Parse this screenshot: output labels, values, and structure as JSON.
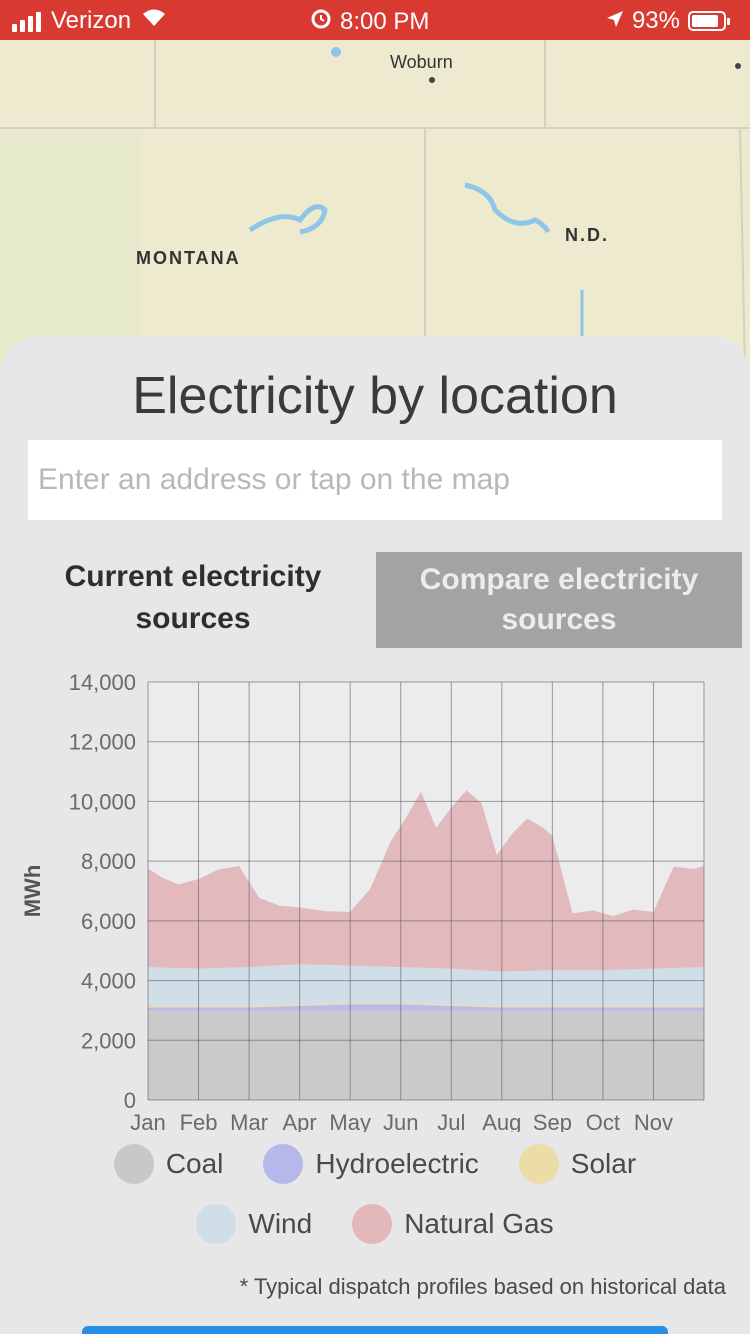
{
  "status_bar": {
    "carrier": "Verizon",
    "time": "8:00 PM",
    "battery": "93%",
    "signal_icon": "signal-bars-icon",
    "wifi_icon": "wifi-icon",
    "battery_icon": "battery-icon",
    "background": "#d83a32"
  },
  "map": {
    "labels": {
      "city": "Woburn",
      "state1": "MONTANA",
      "state2": "N.D."
    }
  },
  "panel": {
    "title": "Electricity by location",
    "address_placeholder": "Enter an address or tap on the map",
    "tab_current": "Current electricity sources",
    "tab_compare": "Compare electricity sources"
  },
  "chart_data": {
    "type": "area",
    "ylabel": "MWh",
    "ylim": [
      0,
      14000
    ],
    "y_ticks": [
      "0",
      "2,000",
      "4,000",
      "6,000",
      "8,000",
      "10,000",
      "12,000",
      "14,000"
    ],
    "x_ticks": [
      "Jan",
      "Feb",
      "Mar",
      "Apr",
      "May",
      "Jun",
      "Jul",
      "Aug",
      "Sep",
      "Oct",
      "Nov"
    ],
    "x_range": [
      0,
      11
    ],
    "stacked": true,
    "grid": true,
    "series": [
      {
        "name": "Coal",
        "color": "#c9c7c8",
        "x": [
          0,
          1,
          2,
          3,
          4,
          5,
          6,
          7,
          8,
          9,
          10,
          11
        ],
        "y": [
          3000,
          3000,
          3000,
          3000,
          3000,
          3000,
          3000,
          3000,
          3000,
          3000,
          3000,
          3000
        ]
      },
      {
        "name": "Hydroelectric",
        "color": "#b6b8ec",
        "x": [
          0,
          1,
          2,
          3,
          4,
          5,
          6,
          7,
          8,
          9,
          10,
          11
        ],
        "y": [
          100,
          100,
          100,
          150,
          200,
          200,
          150,
          100,
          100,
          100,
          100,
          100
        ]
      },
      {
        "name": "Solar",
        "color": "#ecdca6",
        "x": [
          0,
          1,
          2,
          3,
          4,
          5,
          6,
          7,
          8,
          9,
          10,
          11
        ],
        "y": [
          50,
          50,
          50,
          50,
          50,
          50,
          50,
          50,
          50,
          50,
          50,
          50
        ]
      },
      {
        "name": "Wind",
        "color": "#cfdde6",
        "x": [
          0,
          1,
          2,
          3,
          4,
          5,
          6,
          7,
          8,
          9,
          10,
          11
        ],
        "y": [
          1300,
          1250,
          1300,
          1350,
          1250,
          1200,
          1200,
          1150,
          1200,
          1200,
          1250,
          1300
        ]
      },
      {
        "name": "Natural Gas",
        "color": "#e2b7ba",
        "x": [
          0,
          0.3,
          0.6,
          1,
          1.4,
          1.8,
          2.2,
          2.6,
          3,
          3.5,
          4,
          4.4,
          4.8,
          5.1,
          5.4,
          5.7,
          6,
          6.3,
          6.6,
          6.9,
          7.2,
          7.5,
          7.8,
          8,
          8.4,
          8.8,
          9.2,
          9.6,
          10,
          10.4,
          10.8,
          11
        ],
        "y": [
          3300,
          3000,
          2800,
          3000,
          3300,
          3400,
          2300,
          2000,
          1900,
          1800,
          1800,
          2600,
          4200,
          5000,
          5900,
          4700,
          5400,
          6000,
          5600,
          3900,
          4600,
          5100,
          4800,
          4500,
          1900,
          2000,
          1800,
          2000,
          1900,
          3400,
          3300,
          3400
        ]
      }
    ]
  },
  "legend_items": [
    "Coal",
    "Hydroelectric",
    "Solar",
    "Wind",
    "Natural Gas"
  ],
  "footnote": "* Typical dispatch profiles based on historical data",
  "bottom_button": {
    "color": "#2b8ee6"
  }
}
